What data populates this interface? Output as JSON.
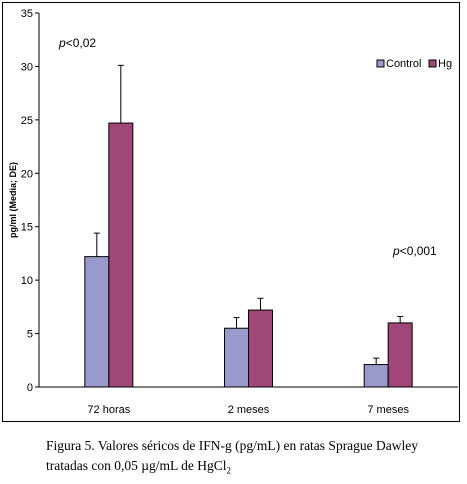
{
  "chart_data": {
    "type": "bar",
    "categories": [
      "72 horas",
      "2 meses",
      "7 meses"
    ],
    "series": [
      {
        "name": "Control",
        "color": "#9999cc",
        "values": [
          12.2,
          5.5,
          2.1
        ],
        "errors": [
          2.2,
          1.0,
          0.6
        ]
      },
      {
        "name": "Hg",
        "color": "#a0477a",
        "values": [
          24.7,
          7.2,
          6.0
        ],
        "errors": [
          5.4,
          1.1,
          0.6
        ]
      }
    ],
    "xlabel": "",
    "ylabel": "pg/ml (Media; DE)",
    "ylim": [
      0,
      35
    ],
    "yticks": [
      0,
      5,
      10,
      15,
      20,
      25,
      30,
      35
    ],
    "grid": false,
    "legend_position": "top-right",
    "annotations": [
      {
        "text_italic": "p",
        "text": "<0,02",
        "category": "72 horas"
      },
      {
        "text_italic": "p",
        "text": "<0,001",
        "category": "7 meses"
      }
    ]
  },
  "caption": {
    "line1": "Figura 5. Valores séricos de IFN-g (pg/mL) en ratas Sprague Dawley",
    "line2_prefix": "tratadas con 0,05 µg/mL de HgCl",
    "line2_sub": "2"
  }
}
